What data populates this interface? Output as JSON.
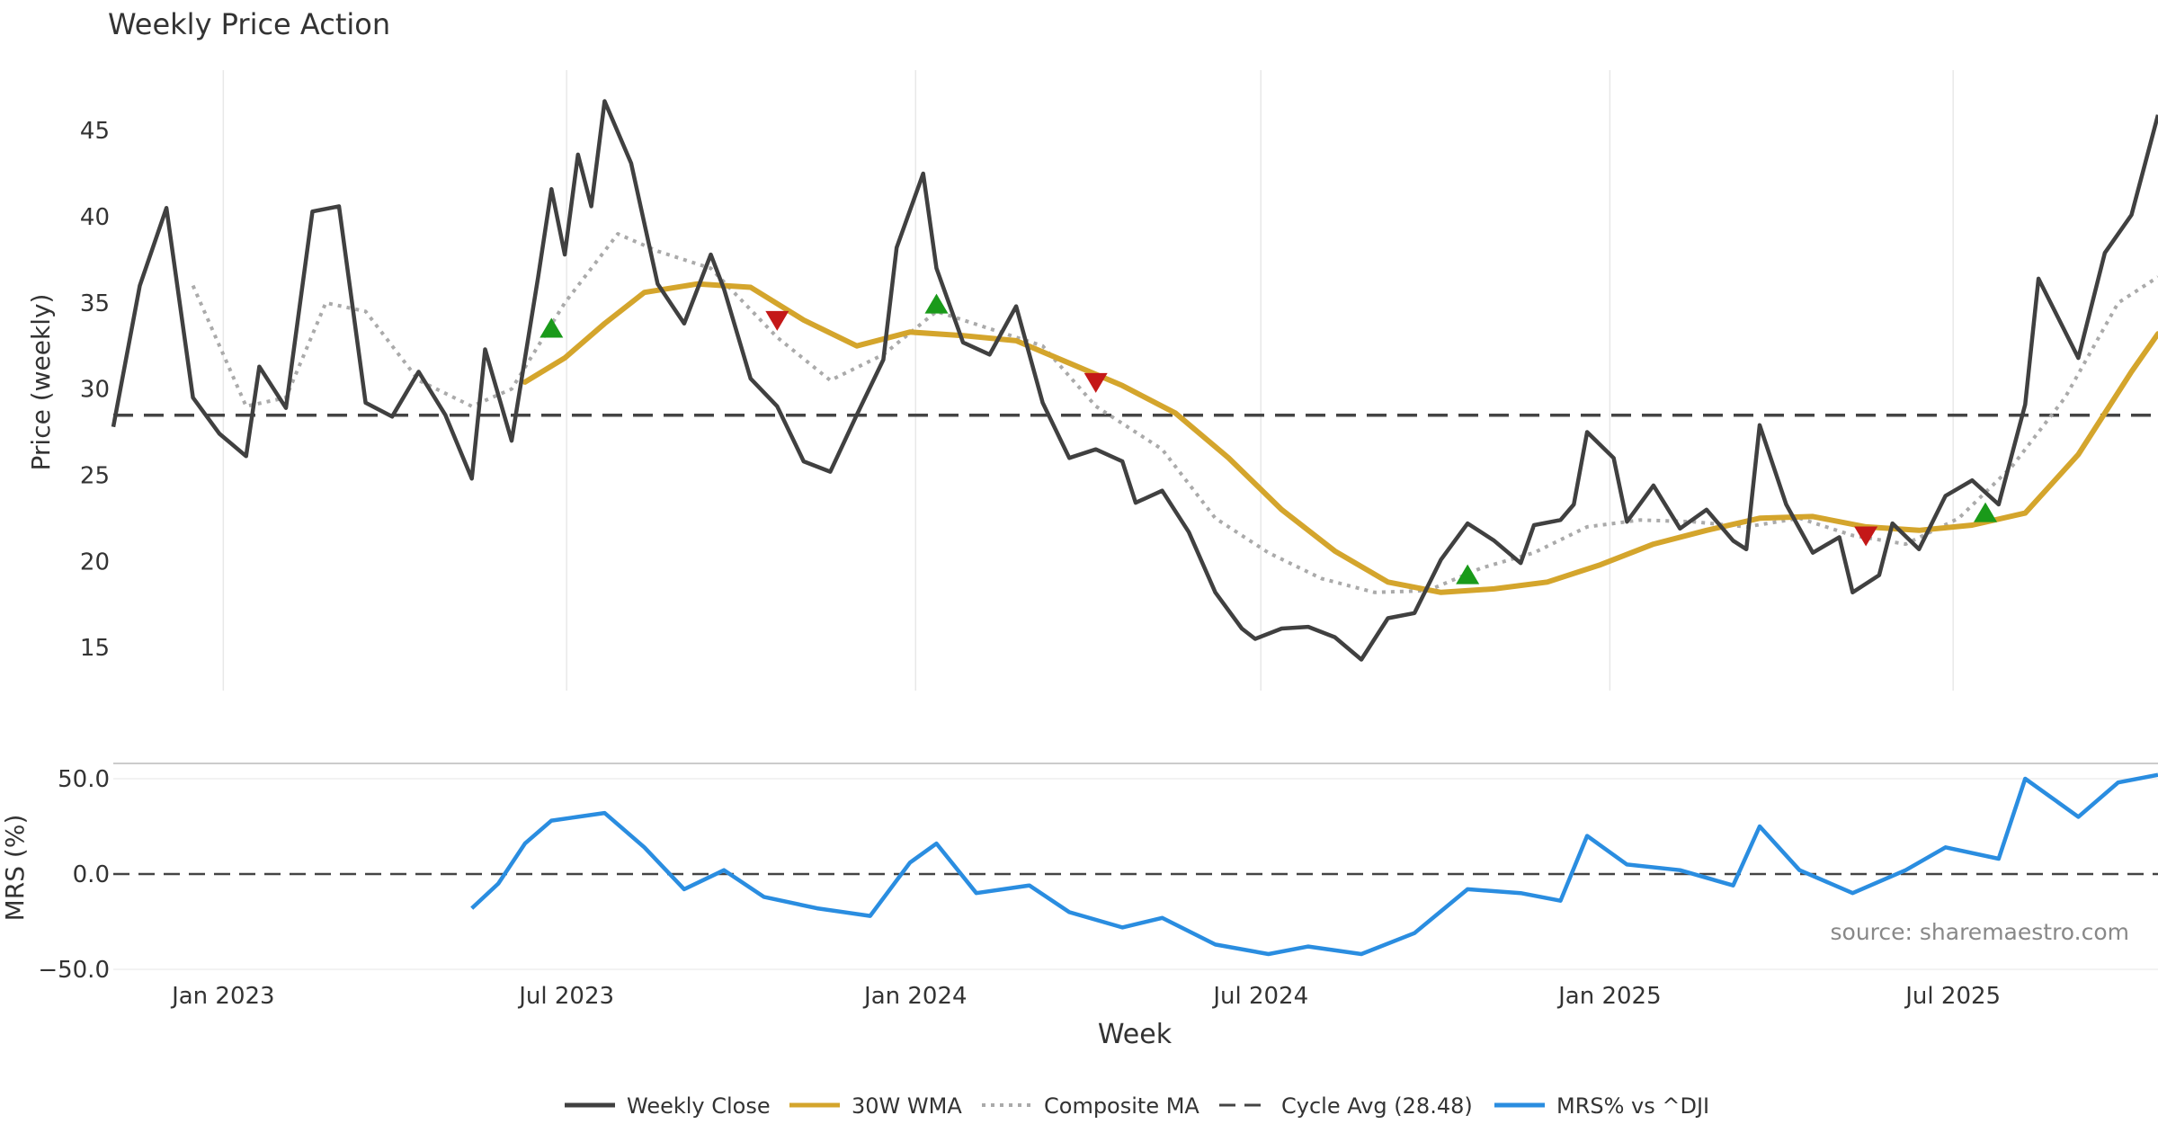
{
  "chart_data": {
    "type": "line",
    "title": "Weekly Price Action",
    "source": "source: sharemaestro.com",
    "xlabel": "Week",
    "x_ticks": [
      "Jan 2023",
      "Jul 2023",
      "Jan 2024",
      "Jul 2024",
      "Jan 2025",
      "Jul 2025"
    ],
    "x_tick_dates": [
      "2023-01-01",
      "2023-07-01",
      "2024-01-01",
      "2024-07-01",
      "2025-01-01",
      "2025-07-01"
    ],
    "x_range": [
      "2022-11-04",
      "2025-10-17"
    ],
    "price_panel": {
      "ylabel": "Price (weekly)",
      "ylim": [
        12.5,
        48.5
      ],
      "y_ticks": [
        "15",
        "20",
        "25",
        "30",
        "35",
        "40",
        "45"
      ],
      "y_tick_values": [
        15,
        20,
        25,
        30,
        35,
        40,
        45
      ],
      "cycle_avg": 28.48
    },
    "mrs_panel": {
      "ylabel": "MRS (%)",
      "ylim": [
        -50,
        58
      ],
      "y_ticks": [
        "50.0",
        "0.0",
        "−50.0"
      ],
      "y_tick_values": [
        50,
        0,
        -50
      ],
      "zero_line": 0
    },
    "legend": {
      "placement": "bottom-center",
      "weekly_close": "Weekly Close",
      "wma": "30W WMA",
      "composite": "Composite MA",
      "cycle": "Cycle Avg (28.48)",
      "mrs": "MRS% vs ^DJI"
    },
    "colors": {
      "weekly_close": "#404040",
      "wma": "#d4a52c",
      "composite": "#aaaaaa",
      "cycle": "#444444",
      "mrs": "#2a8de0",
      "buy": "#1a9a1a",
      "sell": "#c41818"
    },
    "series": [
      {
        "name": "Weekly Close",
        "points": [
          [
            "2022-11-04",
            27.8
          ],
          [
            "2022-11-18",
            36.0
          ],
          [
            "2022-12-02",
            40.5
          ],
          [
            "2022-12-16",
            29.5
          ],
          [
            "2022-12-30",
            27.4
          ],
          [
            "2023-01-13",
            26.1
          ],
          [
            "2023-01-20",
            31.3
          ],
          [
            "2023-02-03",
            28.9
          ],
          [
            "2023-02-17",
            40.3
          ],
          [
            "2023-03-03",
            40.6
          ],
          [
            "2023-03-17",
            29.2
          ],
          [
            "2023-03-31",
            28.4
          ],
          [
            "2023-04-14",
            31.0
          ],
          [
            "2023-04-28",
            28.5
          ],
          [
            "2023-05-12",
            24.8
          ],
          [
            "2023-05-19",
            32.3
          ],
          [
            "2023-06-02",
            27.0
          ],
          [
            "2023-06-16",
            36.5
          ],
          [
            "2023-06-23",
            41.6
          ],
          [
            "2023-06-30",
            37.8
          ],
          [
            "2023-07-07",
            43.6
          ],
          [
            "2023-07-14",
            40.6
          ],
          [
            "2023-07-21",
            46.7
          ],
          [
            "2023-08-04",
            43.1
          ],
          [
            "2023-08-18",
            36.1
          ],
          [
            "2023-09-01",
            33.8
          ],
          [
            "2023-09-15",
            37.8
          ],
          [
            "2023-09-22",
            35.8
          ],
          [
            "2023-10-06",
            30.6
          ],
          [
            "2023-10-20",
            29.0
          ],
          [
            "2023-11-03",
            25.8
          ],
          [
            "2023-11-17",
            25.2
          ],
          [
            "2023-12-01",
            28.5
          ],
          [
            "2023-12-15",
            31.7
          ],
          [
            "2023-12-22",
            38.2
          ],
          [
            "2024-01-05",
            42.5
          ],
          [
            "2024-01-12",
            37.0
          ],
          [
            "2024-01-26",
            32.7
          ],
          [
            "2024-02-09",
            32.0
          ],
          [
            "2024-02-23",
            34.8
          ],
          [
            "2024-03-08",
            29.2
          ],
          [
            "2024-03-22",
            26.0
          ],
          [
            "2024-04-05",
            26.5
          ],
          [
            "2024-04-19",
            25.8
          ],
          [
            "2024-04-26",
            23.4
          ],
          [
            "2024-05-10",
            24.1
          ],
          [
            "2024-05-24",
            21.7
          ],
          [
            "2024-06-07",
            18.2
          ],
          [
            "2024-06-21",
            16.1
          ],
          [
            "2024-06-28",
            15.5
          ],
          [
            "2024-07-12",
            16.1
          ],
          [
            "2024-07-26",
            16.2
          ],
          [
            "2024-08-09",
            15.6
          ],
          [
            "2024-08-23",
            14.3
          ],
          [
            "2024-09-06",
            16.7
          ],
          [
            "2024-09-20",
            17.0
          ],
          [
            "2024-10-04",
            20.1
          ],
          [
            "2024-10-18",
            22.2
          ],
          [
            "2024-11-01",
            21.2
          ],
          [
            "2024-11-15",
            19.9
          ],
          [
            "2024-11-22",
            22.1
          ],
          [
            "2024-12-06",
            22.4
          ],
          [
            "2024-12-13",
            23.3
          ],
          [
            "2024-12-20",
            27.5
          ],
          [
            "2025-01-03",
            26.0
          ],
          [
            "2025-01-10",
            22.3
          ],
          [
            "2025-01-24",
            24.4
          ],
          [
            "2025-02-07",
            21.9
          ],
          [
            "2025-02-21",
            23.0
          ],
          [
            "2025-03-07",
            21.2
          ],
          [
            "2025-03-14",
            20.7
          ],
          [
            "2025-03-21",
            27.9
          ],
          [
            "2025-04-04",
            23.3
          ],
          [
            "2025-04-18",
            20.5
          ],
          [
            "2025-05-02",
            21.4
          ],
          [
            "2025-05-09",
            18.2
          ],
          [
            "2025-05-23",
            19.2
          ],
          [
            "2025-05-30",
            22.2
          ],
          [
            "2025-06-13",
            20.7
          ],
          [
            "2025-06-27",
            23.8
          ],
          [
            "2025-07-11",
            24.7
          ],
          [
            "2025-07-25",
            23.3
          ],
          [
            "2025-08-08",
            29.1
          ],
          [
            "2025-08-15",
            36.4
          ],
          [
            "2025-09-05",
            31.8
          ],
          [
            "2025-09-19",
            37.9
          ],
          [
            "2025-10-03",
            40.1
          ],
          [
            "2025-10-17",
            45.9
          ]
        ]
      },
      {
        "name": "30W WMA",
        "points": [
          [
            "2023-06-09",
            30.4
          ],
          [
            "2023-06-30",
            31.8
          ],
          [
            "2023-07-21",
            33.8
          ],
          [
            "2023-08-11",
            35.6
          ],
          [
            "2023-09-08",
            36.1
          ],
          [
            "2023-10-06",
            35.9
          ],
          [
            "2023-11-03",
            34.0
          ],
          [
            "2023-12-01",
            32.5
          ],
          [
            "2023-12-29",
            33.3
          ],
          [
            "2024-01-26",
            33.1
          ],
          [
            "2024-02-23",
            32.8
          ],
          [
            "2024-03-22",
            31.5
          ],
          [
            "2024-04-19",
            30.2
          ],
          [
            "2024-05-17",
            28.6
          ],
          [
            "2024-06-14",
            26.0
          ],
          [
            "2024-07-12",
            23.0
          ],
          [
            "2024-08-09",
            20.6
          ],
          [
            "2024-09-06",
            18.8
          ],
          [
            "2024-10-04",
            18.2
          ],
          [
            "2024-11-01",
            18.4
          ],
          [
            "2024-11-29",
            18.8
          ],
          [
            "2024-12-27",
            19.8
          ],
          [
            "2025-01-24",
            21.0
          ],
          [
            "2025-02-21",
            21.8
          ],
          [
            "2025-03-21",
            22.5
          ],
          [
            "2025-04-18",
            22.6
          ],
          [
            "2025-05-16",
            22.0
          ],
          [
            "2025-06-13",
            21.8
          ],
          [
            "2025-07-11",
            22.1
          ],
          [
            "2025-08-08",
            22.8
          ],
          [
            "2025-09-05",
            26.2
          ],
          [
            "2025-10-03",
            31.0
          ],
          [
            "2025-10-17",
            33.2
          ]
        ]
      },
      {
        "name": "Composite MA",
        "points": [
          [
            "2022-12-16",
            36.0
          ],
          [
            "2023-01-13",
            29.0
          ],
          [
            "2023-02-03",
            29.5
          ],
          [
            "2023-02-24",
            35.0
          ],
          [
            "2023-03-17",
            34.5
          ],
          [
            "2023-04-14",
            30.5
          ],
          [
            "2023-05-12",
            29.0
          ],
          [
            "2023-06-02",
            30.0
          ],
          [
            "2023-06-30",
            35.0
          ],
          [
            "2023-07-28",
            39.0
          ],
          [
            "2023-08-18",
            38.0
          ],
          [
            "2023-09-15",
            37.0
          ],
          [
            "2023-10-20",
            33.0
          ],
          [
            "2023-11-17",
            30.5
          ],
          [
            "2023-12-15",
            32.0
          ],
          [
            "2024-01-12",
            34.5
          ],
          [
            "2024-02-09",
            33.5
          ],
          [
            "2024-03-08",
            32.5
          ],
          [
            "2024-04-05",
            29.0
          ],
          [
            "2024-05-10",
            26.5
          ],
          [
            "2024-06-07",
            22.5
          ],
          [
            "2024-07-05",
            20.5
          ],
          [
            "2024-08-02",
            19.0
          ],
          [
            "2024-08-30",
            18.2
          ],
          [
            "2024-09-27",
            18.3
          ],
          [
            "2024-10-25",
            19.6
          ],
          [
            "2024-11-22",
            20.5
          ],
          [
            "2024-12-20",
            22.0
          ],
          [
            "2025-01-17",
            22.4
          ],
          [
            "2025-02-14",
            22.3
          ],
          [
            "2025-03-14",
            22.0
          ],
          [
            "2025-04-11",
            22.5
          ],
          [
            "2025-05-09",
            21.5
          ],
          [
            "2025-06-06",
            21.0
          ],
          [
            "2025-07-04",
            22.5
          ],
          [
            "2025-08-01",
            25.5
          ],
          [
            "2025-08-29",
            29.5
          ],
          [
            "2025-09-26",
            35.0
          ],
          [
            "2025-10-17",
            36.5
          ]
        ]
      },
      {
        "name": "MRS% vs ^DJI",
        "points": [
          [
            "2023-05-12",
            -18.0
          ],
          [
            "2023-05-26",
            -5.0
          ],
          [
            "2023-06-09",
            16.0
          ],
          [
            "2023-06-23",
            28.0
          ],
          [
            "2023-07-07",
            30.0
          ],
          [
            "2023-07-21",
            32.0
          ],
          [
            "2023-08-11",
            14.0
          ],
          [
            "2023-09-01",
            -8.0
          ],
          [
            "2023-09-22",
            2.0
          ],
          [
            "2023-10-13",
            -12.0
          ],
          [
            "2023-11-10",
            -18.0
          ],
          [
            "2023-12-08",
            -22.0
          ],
          [
            "2023-12-29",
            6.0
          ],
          [
            "2024-01-12",
            16.0
          ],
          [
            "2024-02-02",
            -10.0
          ],
          [
            "2024-03-01",
            -6.0
          ],
          [
            "2024-03-22",
            -20.0
          ],
          [
            "2024-04-19",
            -28.0
          ],
          [
            "2024-05-10",
            -23.0
          ],
          [
            "2024-06-07",
            -37.0
          ],
          [
            "2024-07-05",
            -42.0
          ],
          [
            "2024-07-26",
            -38.0
          ],
          [
            "2024-08-23",
            -42.0
          ],
          [
            "2024-09-20",
            -31.0
          ],
          [
            "2024-10-18",
            -8.0
          ],
          [
            "2024-11-15",
            -10.0
          ],
          [
            "2024-12-06",
            -14.0
          ],
          [
            "2024-12-20",
            20.0
          ],
          [
            "2025-01-10",
            5.0
          ],
          [
            "2025-02-07",
            2.0
          ],
          [
            "2025-03-07",
            -6.0
          ],
          [
            "2025-03-21",
            25.0
          ],
          [
            "2025-04-11",
            2.0
          ],
          [
            "2025-05-09",
            -10.0
          ],
          [
            "2025-06-06",
            2.0
          ],
          [
            "2025-06-27",
            14.0
          ],
          [
            "2025-07-25",
            8.0
          ],
          [
            "2025-08-08",
            50.0
          ],
          [
            "2025-09-05",
            30.0
          ],
          [
            "2025-09-26",
            48.0
          ],
          [
            "2025-10-17",
            52.0
          ]
        ]
      }
    ],
    "buy_signals": [
      [
        "2023-06-23",
        33.5
      ],
      [
        "2024-01-12",
        34.9
      ],
      [
        "2024-10-18",
        19.2
      ],
      [
        "2025-07-18",
        22.8
      ]
    ],
    "sell_signals": [
      [
        "2023-10-20",
        34.0
      ],
      [
        "2024-04-05",
        30.4
      ],
      [
        "2025-05-16",
        21.5
      ]
    ]
  }
}
